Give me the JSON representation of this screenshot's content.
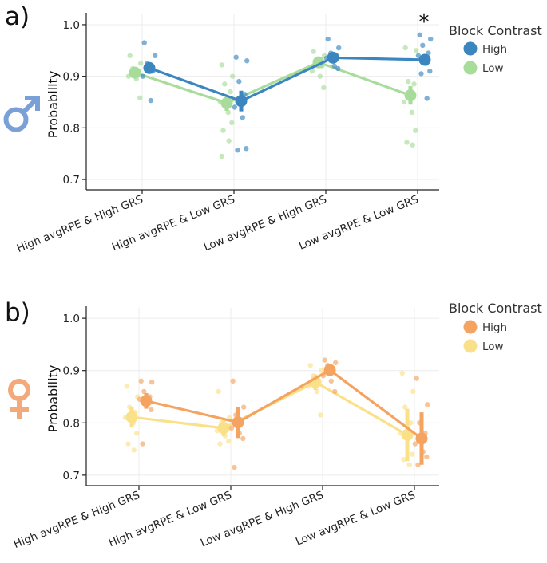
{
  "chart_data": [
    {
      "panel": "a)",
      "icon": "male-symbol-icon",
      "type": "line",
      "ylabel": "Probability",
      "ylim": [
        0.68,
        1.02
      ],
      "yticks": [
        0.7,
        0.8,
        0.9,
        1.0
      ],
      "ytick_labels": [
        "0.7",
        "0.8",
        "0.9",
        "1.0"
      ],
      "categories": [
        "High avgRPE & High GRS",
        "High avgRPE & Low GRS",
        "Low avgRPE & High GRS",
        "Low avgRPE & Low GRS"
      ],
      "legend_title": "Block Contrast",
      "annotations": [
        {
          "text": "*",
          "category": 3
        }
      ],
      "series": [
        {
          "name": "High",
          "color": "#3b86bf",
          "values": [
            0.916,
            0.852,
            0.936,
            0.932
          ],
          "err": [
            0.008,
            0.02,
            0.008,
            0.01
          ],
          "points": [
            [
              0.965,
              0.94,
              0.925,
              0.91,
              0.9,
              0.853
            ],
            [
              0.937,
              0.93,
              0.89,
              0.865,
              0.84,
              0.82,
              0.76,
              0.757
            ],
            [
              0.972,
              0.955,
              0.945,
              0.94,
              0.935,
              0.92,
              0.915
            ],
            [
              0.98,
              0.972,
              0.96,
              0.945,
              0.94,
              0.925,
              0.91,
              0.905,
              0.857
            ]
          ]
        },
        {
          "name": "Low",
          "color": "#a8dc9a",
          "values": [
            0.907,
            0.848,
            0.927,
            0.863
          ],
          "err": [
            0.008,
            0.015,
            0.01,
            0.018
          ],
          "points": [
            [
              0.94,
              0.925,
              0.915,
              0.91,
              0.9,
              0.895,
              0.858
            ],
            [
              0.922,
              0.9,
              0.885,
              0.87,
              0.85,
              0.83,
              0.81,
              0.795,
              0.775,
              0.745
            ],
            [
              0.948,
              0.94,
              0.932,
              0.92,
              0.91,
              0.9,
              0.878
            ],
            [
              0.955,
              0.95,
              0.89,
              0.885,
              0.85,
              0.83,
              0.795,
              0.772,
              0.767
            ]
          ]
        }
      ]
    },
    {
      "panel": "b)",
      "icon": "female-symbol-icon",
      "type": "line",
      "ylabel": "Probability",
      "ylim": [
        0.68,
        1.02
      ],
      "yticks": [
        0.7,
        0.8,
        0.9,
        1.0
      ],
      "ytick_labels": [
        "0.7",
        "0.8",
        "0.9",
        "1.0"
      ],
      "categories": [
        "High avgRPE & High GRS",
        "High avgRPE & Low GRS",
        "Low avgRPE & High GRS",
        "Low avgRPE & Low GRS"
      ],
      "legend_title": "Block Contrast",
      "annotations": [],
      "series": [
        {
          "name": "High",
          "color": "#f4a460",
          "values": [
            0.842,
            0.801,
            0.901,
            0.77
          ],
          "err": [
            0.015,
            0.03,
            0.012,
            0.05
          ],
          "points": [
            [
              0.88,
              0.878,
              0.86,
              0.85,
              0.845,
              0.835,
              0.825,
              0.76
            ],
            [
              0.88,
              0.83,
              0.815,
              0.8,
              0.79,
              0.78,
              0.77,
              0.715
            ],
            [
              0.92,
              0.915,
              0.91,
              0.9,
              0.89,
              0.88,
              0.86
            ],
            [
              0.885,
              0.835,
              0.8,
              0.78,
              0.76,
              0.745,
              0.735,
              0.72
            ]
          ]
        },
        {
          "name": "Low",
          "color": "#fbe08a",
          "values": [
            0.811,
            0.79,
            0.878,
            0.777
          ],
          "err": [
            0.02,
            0.015,
            0.015,
            0.05
          ],
          "points": [
            [
              0.87,
              0.85,
              0.83,
              0.82,
              0.81,
              0.8,
              0.78,
              0.76,
              0.748
            ],
            [
              0.86,
              0.81,
              0.8,
              0.79,
              0.785,
              0.775,
              0.765,
              0.76
            ],
            [
              0.91,
              0.9,
              0.89,
              0.88,
              0.87,
              0.86,
              0.815
            ],
            [
              0.895,
              0.86,
              0.83,
              0.8,
              0.78,
              0.77,
              0.74,
              0.73,
              0.72
            ]
          ]
        }
      ]
    }
  ]
}
